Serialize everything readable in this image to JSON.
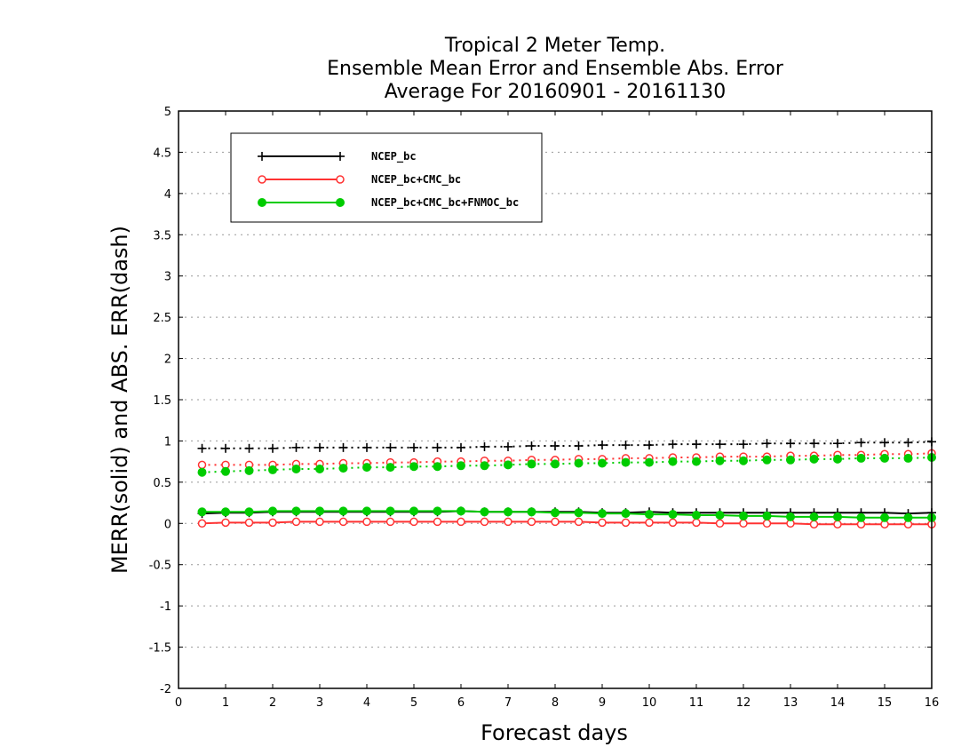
{
  "chart_data": {
    "type": "line",
    "title_lines": [
      "Tropical 2 Meter Temp.",
      "Ensemble Mean Error and Ensemble Abs. Error",
      "Average For 20160901 - 20161130"
    ],
    "xlabel": "Forecast days",
    "ylabel": "MERR(solid) and ABS. ERR(dash)",
    "xlim": [
      0,
      16
    ],
    "ylim": [
      -2,
      5
    ],
    "x_ticks": [
      "0",
      "1",
      "2",
      "3",
      "4",
      "5",
      "6",
      "7",
      "8",
      "9",
      "10",
      "11",
      "12",
      "13",
      "14",
      "15",
      "16"
    ],
    "y_ticks": [
      "5",
      "4.5",
      "4",
      "3.5",
      "3",
      "2.5",
      "2",
      "1.5",
      "1",
      "0.5",
      "0",
      "-0.5",
      "-1",
      "-1.5",
      "-2"
    ],
    "grid": true,
    "legend_position": "top-left",
    "x": [
      0.5,
      1,
      1.5,
      2,
      2.5,
      3,
      3.5,
      4,
      4.5,
      5,
      5.5,
      6,
      6.5,
      7,
      7.5,
      8,
      8.5,
      9,
      9.5,
      10,
      10.5,
      11,
      11.5,
      12,
      12.5,
      13,
      13.5,
      14,
      14.5,
      15,
      15.5,
      16
    ],
    "series": [
      {
        "name": "NCEP_bc",
        "color": "#000000",
        "marker": "plus",
        "merr": [
          0.12,
          0.13,
          0.13,
          0.14,
          0.14,
          0.14,
          0.14,
          0.14,
          0.14,
          0.14,
          0.14,
          0.15,
          0.14,
          0.14,
          0.14,
          0.14,
          0.14,
          0.13,
          0.13,
          0.14,
          0.13,
          0.13,
          0.13,
          0.13,
          0.13,
          0.13,
          0.13,
          0.13,
          0.13,
          0.13,
          0.12,
          0.13
        ],
        "abs_err": [
          0.91,
          0.91,
          0.91,
          0.91,
          0.92,
          0.92,
          0.92,
          0.92,
          0.92,
          0.92,
          0.92,
          0.92,
          0.93,
          0.93,
          0.94,
          0.94,
          0.94,
          0.95,
          0.95,
          0.95,
          0.96,
          0.96,
          0.96,
          0.96,
          0.97,
          0.97,
          0.97,
          0.97,
          0.98,
          0.98,
          0.98,
          0.99
        ]
      },
      {
        "name": "NCEP_bc+CMC_bc",
        "color": "#ff3333",
        "marker": "open-circle",
        "merr": [
          0.0,
          0.01,
          0.01,
          0.01,
          0.02,
          0.02,
          0.02,
          0.02,
          0.02,
          0.02,
          0.02,
          0.02,
          0.02,
          0.02,
          0.02,
          0.02,
          0.02,
          0.01,
          0.01,
          0.01,
          0.01,
          0.01,
          0.0,
          0.0,
          0.0,
          0.0,
          -0.01,
          -0.01,
          -0.01,
          -0.01,
          -0.01,
          -0.01
        ],
        "abs_err": [
          0.71,
          0.71,
          0.71,
          0.71,
          0.72,
          0.72,
          0.73,
          0.73,
          0.74,
          0.74,
          0.75,
          0.75,
          0.76,
          0.76,
          0.77,
          0.77,
          0.78,
          0.78,
          0.79,
          0.79,
          0.8,
          0.8,
          0.81,
          0.81,
          0.81,
          0.82,
          0.82,
          0.83,
          0.83,
          0.84,
          0.84,
          0.85
        ]
      },
      {
        "name": "NCEP_bc+CMC_bc+FNMOC_bc",
        "color": "#00cc00",
        "marker": "filled-circle",
        "merr": [
          0.14,
          0.14,
          0.14,
          0.15,
          0.15,
          0.15,
          0.15,
          0.15,
          0.15,
          0.15,
          0.15,
          0.15,
          0.14,
          0.14,
          0.14,
          0.13,
          0.13,
          0.12,
          0.12,
          0.11,
          0.11,
          0.1,
          0.1,
          0.09,
          0.09,
          0.08,
          0.08,
          0.08,
          0.07,
          0.07,
          0.07,
          0.07
        ],
        "abs_err": [
          0.62,
          0.63,
          0.64,
          0.65,
          0.66,
          0.66,
          0.67,
          0.68,
          0.68,
          0.69,
          0.69,
          0.7,
          0.7,
          0.71,
          0.72,
          0.72,
          0.73,
          0.73,
          0.74,
          0.74,
          0.75,
          0.75,
          0.76,
          0.76,
          0.77,
          0.77,
          0.78,
          0.78,
          0.79,
          0.79,
          0.79,
          0.8
        ]
      }
    ]
  }
}
